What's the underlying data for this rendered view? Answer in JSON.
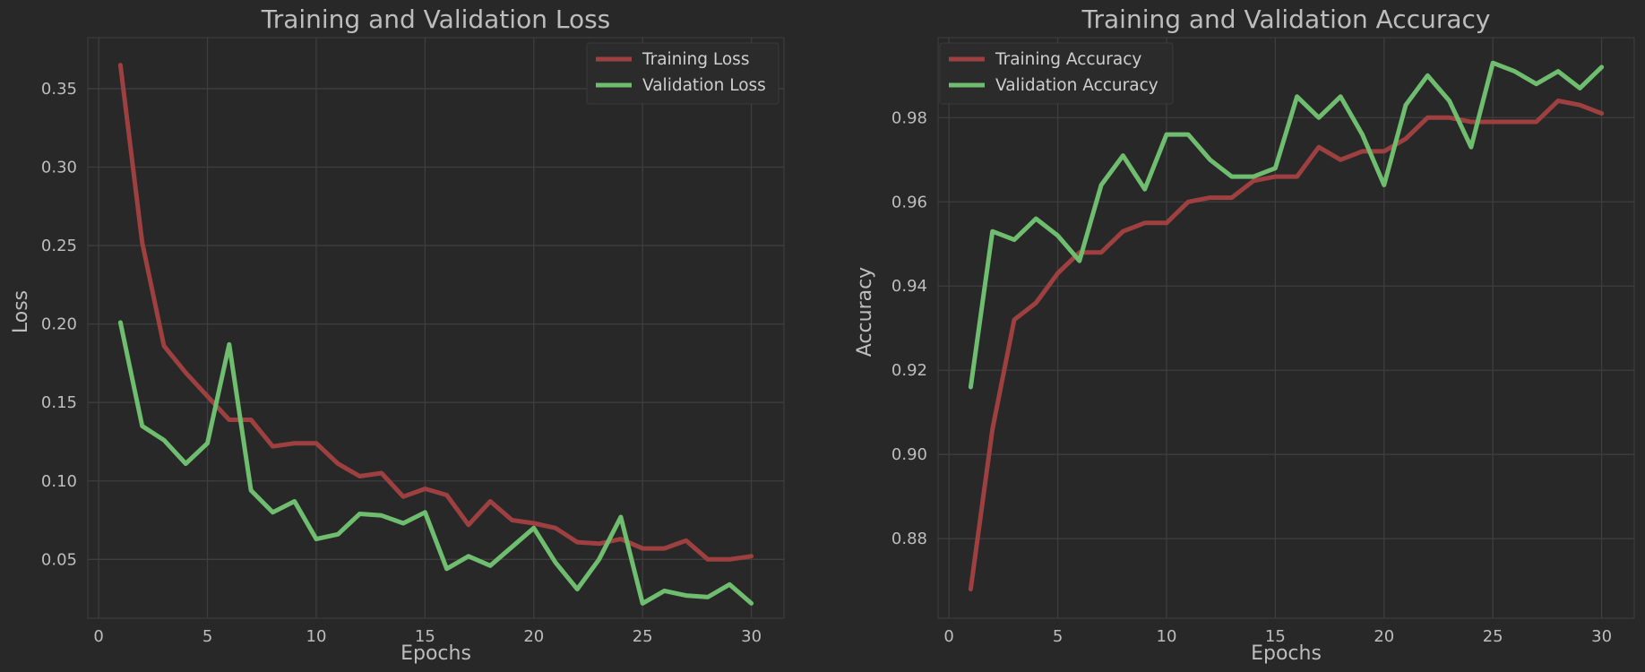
{
  "chart_data": [
    {
      "type": "line",
      "title": "Training and Validation Loss",
      "xlabel": "Epochs",
      "ylabel": "Loss",
      "xlim": [
        -0.5,
        31.5
      ],
      "ylim": [
        0.0125,
        0.3825
      ],
      "xticks": [
        0,
        5,
        10,
        15,
        20,
        25,
        30
      ],
      "yticks": [
        0.05,
        0.1,
        0.15,
        0.2,
        0.25,
        0.3,
        0.35
      ],
      "ytick_labels": [
        "0.05",
        "0.10",
        "0.15",
        "0.20",
        "0.25",
        "0.30",
        "0.35"
      ],
      "grid": true,
      "legend": "top-right",
      "x": [
        1,
        2,
        3,
        4,
        5,
        6,
        7,
        8,
        9,
        10,
        11,
        12,
        13,
        14,
        15,
        16,
        17,
        18,
        19,
        20,
        21,
        22,
        23,
        24,
        25,
        26,
        27,
        28,
        29,
        30
      ],
      "series": [
        {
          "name": "Training Loss",
          "color": "#9e4040",
          "values": [
            0.365,
            0.252,
            0.186,
            0.169,
            0.154,
            0.139,
            0.139,
            0.122,
            0.124,
            0.124,
            0.111,
            0.103,
            0.105,
            0.09,
            0.095,
            0.091,
            0.072,
            0.087,
            0.075,
            0.073,
            0.07,
            0.061,
            0.06,
            0.063,
            0.057,
            0.057,
            0.062,
            0.05,
            0.05,
            0.052
          ]
        },
        {
          "name": "Validation Loss",
          "color": "#6fbd6f",
          "values": [
            0.201,
            0.135,
            0.126,
            0.111,
            0.124,
            0.187,
            0.094,
            0.08,
            0.087,
            0.063,
            0.066,
            0.079,
            0.078,
            0.073,
            0.08,
            0.044,
            0.052,
            0.046,
            0.058,
            0.07,
            0.048,
            0.031,
            0.05,
            0.077,
            0.022,
            0.03,
            0.027,
            0.026,
            0.034,
            0.022
          ]
        }
      ]
    },
    {
      "type": "line",
      "title": "Training and Validation Accuracy",
      "xlabel": "Epochs",
      "ylabel": "Accuracy",
      "xlim": [
        -0.5,
        31.5
      ],
      "ylim": [
        0.8611,
        0.999
      ],
      "xticks": [
        0,
        5,
        10,
        15,
        20,
        25,
        30
      ],
      "yticks": [
        0.88,
        0.9,
        0.92,
        0.94,
        0.96,
        0.98
      ],
      "ytick_labels": [
        "0.88",
        "0.90",
        "0.92",
        "0.94",
        "0.96",
        "0.98"
      ],
      "grid": true,
      "legend": "top-left",
      "x": [
        1,
        2,
        3,
        4,
        5,
        6,
        7,
        8,
        9,
        10,
        11,
        12,
        13,
        14,
        15,
        16,
        17,
        18,
        19,
        20,
        21,
        22,
        23,
        24,
        25,
        26,
        27,
        28,
        29,
        30
      ],
      "series": [
        {
          "name": "Training Accuracy",
          "color": "#9e4040",
          "values": [
            0.868,
            0.906,
            0.932,
            0.936,
            0.943,
            0.948,
            0.948,
            0.953,
            0.955,
            0.955,
            0.96,
            0.961,
            0.961,
            0.965,
            0.966,
            0.966,
            0.973,
            0.97,
            0.972,
            0.972,
            0.975,
            0.98,
            0.98,
            0.979,
            0.979,
            0.979,
            0.979,
            0.984,
            0.983,
            0.981
          ]
        },
        {
          "name": "Validation Accuracy",
          "color": "#6fbd6f",
          "values": [
            0.916,
            0.953,
            0.951,
            0.956,
            0.952,
            0.946,
            0.964,
            0.971,
            0.963,
            0.976,
            0.976,
            0.97,
            0.966,
            0.966,
            0.968,
            0.985,
            0.98,
            0.985,
            0.976,
            0.964,
            0.983,
            0.99,
            0.984,
            0.973,
            0.993,
            0.991,
            0.988,
            0.991,
            0.987,
            0.992
          ]
        }
      ]
    }
  ]
}
